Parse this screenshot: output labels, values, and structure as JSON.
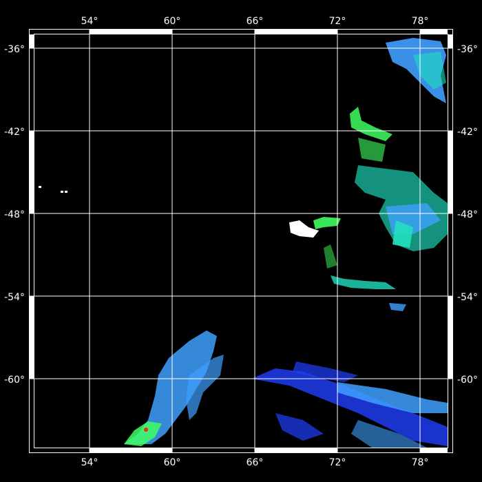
{
  "map": {
    "lon_labels": [
      "54°",
      "60°",
      "66°",
      "72°",
      "78°"
    ],
    "lat_labels": [
      "-36°",
      "-42°",
      "-48°",
      "-54°",
      "-60°"
    ],
    "lon_values": [
      54,
      60,
      66,
      72,
      78
    ],
    "lat_values": [
      -36,
      -42,
      -48,
      -54,
      -60
    ],
    "extent": {
      "lon_min": 50,
      "lon_max": 80,
      "lat_min": -65,
      "lat_max": -35
    },
    "colors": {
      "background": "#000000",
      "grid": "#ffffff",
      "frame": "#ffffff",
      "low": "#2040ff",
      "mid": "#40a0ff",
      "high": "#20e0c0",
      "peak": "#40ff60",
      "max": "#ff2020"
    }
  }
}
